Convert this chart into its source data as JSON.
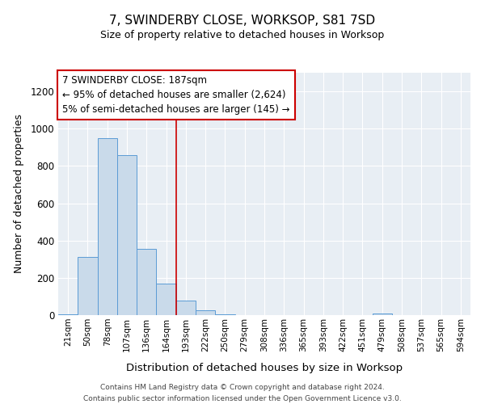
{
  "title": "7, SWINDERBY CLOSE, WORKSOP, S81 7SD",
  "subtitle": "Size of property relative to detached houses in Worksop",
  "xlabel": "Distribution of detached houses by size in Worksop",
  "ylabel": "Number of detached properties",
  "bar_color": "#c9daea",
  "bar_edge_color": "#5b9bd5",
  "background_color": "#e8eef4",
  "grid_color": "#ffffff",
  "annotation_box_color": "#cc0000",
  "vline_color": "#cc0000",
  "vline_x": 5.5,
  "annotation_line1": "7 SWINDERBY CLOSE: 187sqm",
  "annotation_line2": "← 95% of detached houses are smaller (2,624)",
  "annotation_line3": "5% of semi-detached houses are larger (145) →",
  "footer_text": "Contains HM Land Registry data © Crown copyright and database right 2024.\nContains public sector information licensed under the Open Government Licence v3.0.",
  "bin_labels": [
    "21sqm",
    "50sqm",
    "78sqm",
    "107sqm",
    "136sqm",
    "164sqm",
    "193sqm",
    "222sqm",
    "250sqm",
    "279sqm",
    "308sqm",
    "336sqm",
    "365sqm",
    "393sqm",
    "422sqm",
    "451sqm",
    "479sqm",
    "508sqm",
    "537sqm",
    "565sqm",
    "594sqm"
  ],
  "bar_heights": [
    5,
    310,
    950,
    860,
    355,
    170,
    80,
    25,
    5,
    2,
    1,
    0,
    0,
    0,
    0,
    0,
    8,
    0,
    0,
    0,
    0
  ],
  "ylim": [
    0,
    1300
  ],
  "yticks": [
    0,
    200,
    400,
    600,
    800,
    1000,
    1200
  ]
}
